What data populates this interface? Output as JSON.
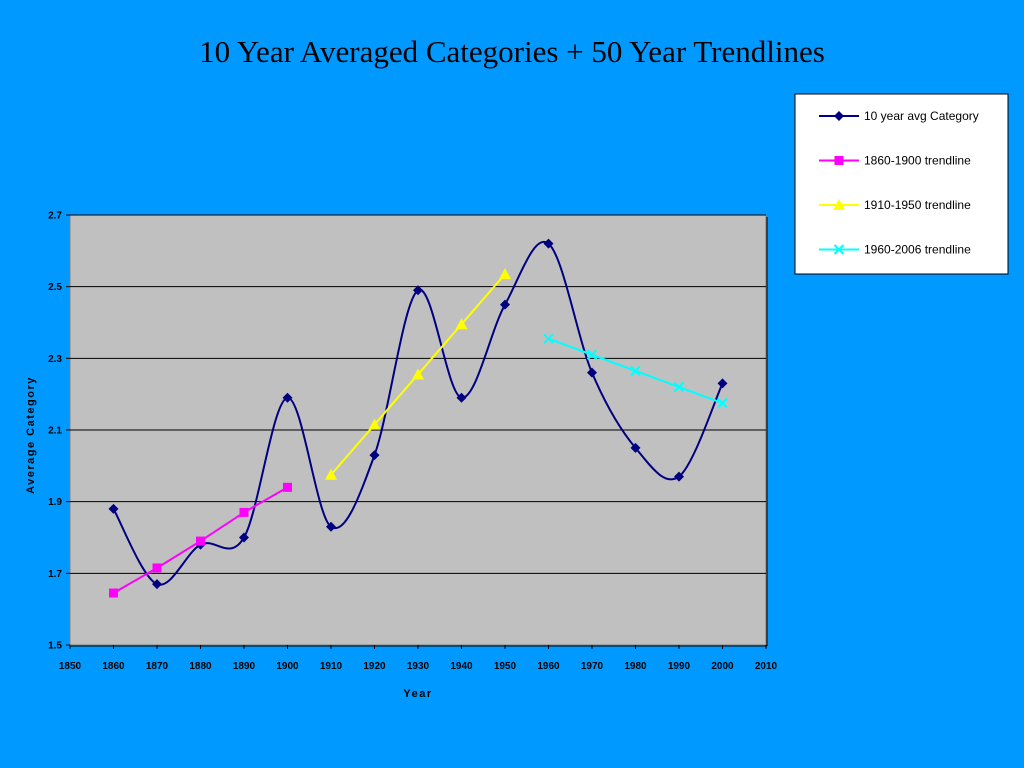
{
  "slide": {
    "title": "10 Year Averaged Categories + 50 Year Trendlines"
  },
  "chart_data": {
    "type": "line",
    "title": "",
    "xlabel": "Year",
    "ylabel": "Average Category",
    "xlim": [
      1850,
      2010
    ],
    "ylim": [
      1.5,
      2.7
    ],
    "x_ticks": [
      1850,
      1860,
      1870,
      1880,
      1890,
      1900,
      1910,
      1920,
      1930,
      1940,
      1950,
      1960,
      1970,
      1980,
      1990,
      2000,
      2010
    ],
    "y_ticks": [
      1.5,
      1.7,
      1.9,
      2.1,
      2.3,
      2.5,
      2.7
    ],
    "y_tick_labels": [
      "1.5",
      "1.7",
      "1.9",
      "2.1",
      "2.3",
      "2.5",
      "2.7"
    ],
    "grid": "horizontal",
    "plot_background": "#c0c0c0",
    "legend_position": "top-right",
    "series": [
      {
        "name": "10 year avg Category",
        "marker": "diamond",
        "smooth": true,
        "color": "#000080",
        "x": [
          1860,
          1870,
          1880,
          1890,
          1900,
          1910,
          1920,
          1930,
          1940,
          1950,
          1960,
          1970,
          1980,
          1990,
          2000
        ],
        "y": [
          1.88,
          1.67,
          1.78,
          1.8,
          2.19,
          1.83,
          2.03,
          2.49,
          2.19,
          2.45,
          2.62,
          2.26,
          2.05,
          1.97,
          2.23
        ]
      },
      {
        "name": "1860-1900 trendline",
        "marker": "square",
        "color": "#ff00ff",
        "x": [
          1860,
          1870,
          1880,
          1890,
          1900
        ],
        "y": [
          1.645,
          1.715,
          1.79,
          1.87,
          1.94
        ]
      },
      {
        "name": "1910-1950 trendline",
        "marker": "triangle",
        "color": "#ffff00",
        "x": [
          1910,
          1920,
          1930,
          1940,
          1950
        ],
        "y": [
          1.975,
          2.115,
          2.255,
          2.395,
          2.535
        ]
      },
      {
        "name": "1960-2006 trendline",
        "marker": "x",
        "color": "#00ffff",
        "x": [
          1960,
          1970,
          1980,
          1990,
          2000
        ],
        "y": [
          2.355,
          2.31,
          2.265,
          2.22,
          2.175
        ]
      }
    ]
  }
}
